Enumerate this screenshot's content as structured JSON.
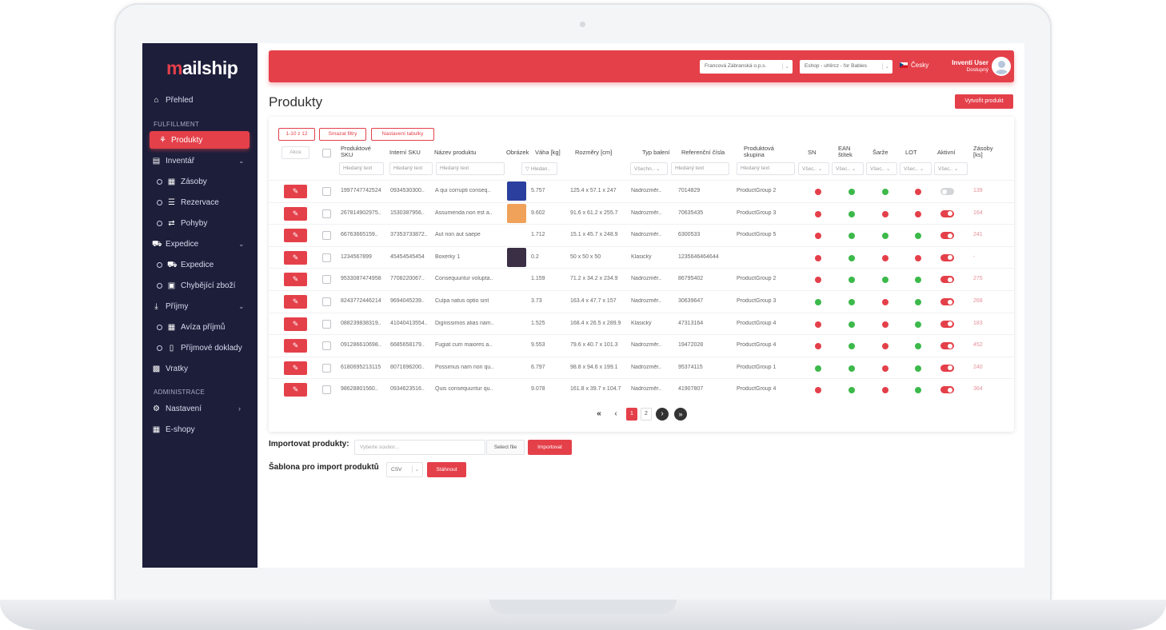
{
  "brand": {
    "logo_text": "ailship",
    "logo_m": "m"
  },
  "sidebar": {
    "overview": "Přehled",
    "section_fulfillment": "FULFILLMENT",
    "products": "Produkty",
    "inventory": "Inventář",
    "stock": "Zásoby",
    "reservations": "Rezervace",
    "movements": "Pohyby",
    "dispatch_group": "Expedice",
    "dispatch": "Expedice",
    "missing_goods": "Chybějící zboží",
    "receipts_group": "Příjmy",
    "receipt_notices": "Avíza příjmů",
    "receipt_documents": "Příjmové doklady",
    "returns": "Vratky",
    "section_admin": "ADMINISTRACE",
    "settings": "Nastavení",
    "eshops": "E-shopy"
  },
  "topbar": {
    "company_select": "Francová Zábranská o.p.s.",
    "eshop_select": "Eshop - uhlircz - for Babies",
    "language": "Česky",
    "user_name": "Inventi User",
    "user_status": "Dostupný"
  },
  "page": {
    "title": "Produkty",
    "create_button": "Vytvořit produkt"
  },
  "toolbar": {
    "range": "1-10 z 12",
    "clear_filters": "Smazat filtry",
    "table_settings": "Nastavení tabulky",
    "actions": "Akce"
  },
  "columns": {
    "sku": "Produktové SKU",
    "internal_sku": "Interní SKU",
    "name": "Název produktu",
    "image": "Obrázek",
    "weight": "Váha [kg]",
    "dims": "Rozměry [cm]",
    "packaging": "Typ balení",
    "refs": "Referenční čísla",
    "group": "Produktová skupina",
    "sn": "SN",
    "ean": "EAN štítek",
    "batch": "Šarže",
    "lot": "LOT",
    "active": "Aktivní",
    "stock": "Zásoby [ks]"
  },
  "filters": {
    "text": "Hledaný text",
    "weight": "Hledan..",
    "packaging": "Všechn..",
    "group": "Hledaný text",
    "all_short": "Všec.."
  },
  "rows": [
    {
      "sku": "1997747742524",
      "internal": "0934530300..",
      "name": "A qui corrupti conseq..",
      "weight": "5.757",
      "dims": "125.4 x 57.1 x 247",
      "packaging": "Nadrozměr..",
      "refs": "7014829",
      "group": "ProductGroup 2",
      "stock": "139"
    },
    {
      "sku": "267814902975..",
      "internal": "1530387956..",
      "name": "Assumenda non est a..",
      "weight": "9.602",
      "dims": "91.6 x 61.2 x 255.7",
      "packaging": "Nadrozměr..",
      "refs": "70635435",
      "group": "ProductGroup 3",
      "stock": "164"
    },
    {
      "sku": "66763665159..",
      "internal": "37353733872..",
      "name": "Aut non aut saepe",
      "weight": "1.712",
      "dims": "15.1 x 45.7 x 248.9",
      "packaging": "Nadrozměr..",
      "refs": "6300533",
      "group": "ProductGroup 5",
      "stock": "241"
    },
    {
      "sku": "1234567899",
      "internal": "45454545454",
      "name": "Boxerky 1",
      "weight": "0.2",
      "dims": "50 x 50 x 50",
      "packaging": "Klasický",
      "refs": "1235646464644",
      "group": "",
      "stock": "-"
    },
    {
      "sku": "9533087474958",
      "internal": "7708220067..",
      "name": "Consequuntur volupta..",
      "weight": "1.159",
      "dims": "71.2 x 34.2 x 234.9",
      "packaging": "Nadrozměr..",
      "refs": "86795402",
      "group": "ProductGroup 2",
      "stock": "275"
    },
    {
      "sku": "8243772446214",
      "internal": "9694045239..",
      "name": "Culpa natus optio sint",
      "weight": "3.73",
      "dims": "163.4 x 47.7 x 157",
      "packaging": "Nadrozměr..",
      "refs": "30639647",
      "group": "ProductGroup 3",
      "stock": "268"
    },
    {
      "sku": "088239838319..",
      "internal": "41040413554..",
      "name": "Dignissimos alias nam..",
      "weight": "1.525",
      "dims": "168.4 x 26.5 x 289.9",
      "packaging": "Klasický",
      "refs": "47313164",
      "group": "ProductGroup 4",
      "stock": "183"
    },
    {
      "sku": "091286610698..",
      "internal": "6685658179..",
      "name": "Fugiat cum maiores a..",
      "weight": "9.553",
      "dims": "79.6 x 40.7 x 101.3",
      "packaging": "Nadrozměr..",
      "refs": "19472028",
      "group": "ProductGroup 4",
      "stock": "452"
    },
    {
      "sku": "6180695213115",
      "internal": "8071696200..",
      "name": "Possimus nam non qu..",
      "weight": "6.797",
      "dims": "98.8 x 94.6 x 199.1",
      "packaging": "Nadrozměr..",
      "refs": "95374115",
      "group": "ProductGroup 1",
      "stock": "240"
    },
    {
      "sku": "98628801560..",
      "internal": "0934623516..",
      "name": "Quis consequuntur qu..",
      "weight": "9.078",
      "dims": "161.8 x 39.7 x 104.7",
      "packaging": "Nadrozměr..",
      "refs": "41907807",
      "group": "ProductGroup 4",
      "stock": "364"
    }
  ],
  "flags": [
    [
      "no",
      "ok",
      "ok",
      "no",
      "off"
    ],
    [
      "no",
      "ok",
      "no",
      "no",
      "on"
    ],
    [
      "no",
      "ok",
      "ok",
      "ok",
      "on"
    ],
    [
      "no",
      "ok",
      "no",
      "no",
      "on"
    ],
    [
      "no",
      "ok",
      "ok",
      "ok",
      "on"
    ],
    [
      "ok",
      "ok",
      "no",
      "ok",
      "on"
    ],
    [
      "no",
      "ok",
      "no",
      "ok",
      "on"
    ],
    [
      "no",
      "ok",
      "no",
      "ok",
      "on"
    ],
    [
      "ok",
      "ok",
      "no",
      "ok",
      "on"
    ],
    [
      "no",
      "ok",
      "no",
      "ok",
      "on"
    ]
  ],
  "thumbs": [
    "#2b3f9e",
    "#f0a25a",
    "",
    "#3a2f45",
    "",
    "",
    "",
    "",
    "",
    ""
  ],
  "pagination": {
    "first": "«",
    "prev": "‹",
    "page1": "1",
    "page2": "2",
    "next": "›",
    "last": "»"
  },
  "import": {
    "label": "Importovat produkty:",
    "placeholder": "Vyberte soubor...",
    "select_file": "Select file",
    "button": "Importovat",
    "template_label": "Šablona pro import produktů",
    "template_format": "CSV",
    "download": "Stáhnout"
  },
  "colors": {
    "accent": "#e4404a",
    "sidebar": "#1c1e3a",
    "ok": "#3cb94a"
  }
}
